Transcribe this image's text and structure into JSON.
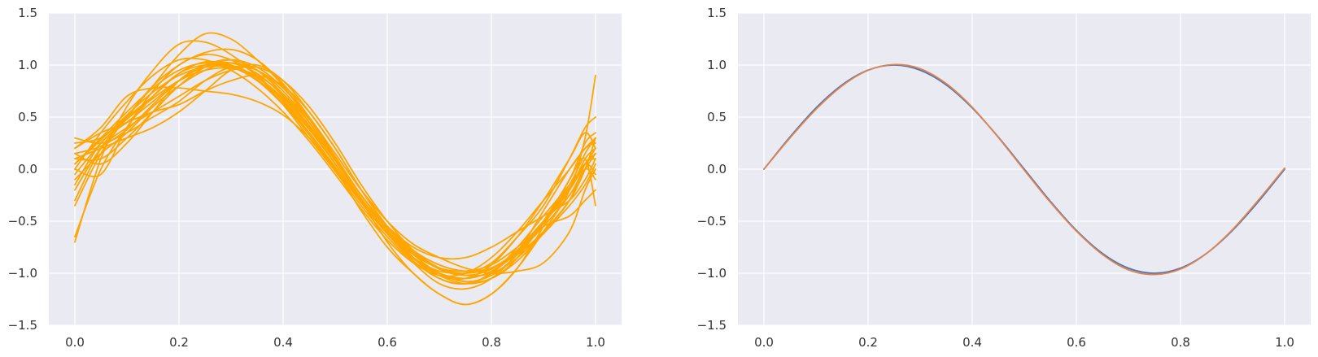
{
  "chart_data": [
    {
      "type": "line",
      "title": "",
      "xlabel": "",
      "ylabel": "",
      "xlim": [
        -0.05,
        1.05
      ],
      "ylim": [
        -1.5,
        1.5
      ],
      "xticks": [
        "0.0",
        "0.2",
        "0.4",
        "0.6",
        "0.8",
        "1.0"
      ],
      "yticks": [
        "−1.5",
        "−1.0",
        "−0.5",
        "0.0",
        "0.5",
        "1.0",
        "1.5"
      ],
      "grid": true,
      "line_color": "#ffa500",
      "n_samples": 20,
      "x": [
        0.0,
        0.05,
        0.1,
        0.15,
        0.2,
        0.25,
        0.3,
        0.35,
        0.4,
        0.45,
        0.5,
        0.55,
        0.6,
        0.65,
        0.7,
        0.75,
        0.8,
        0.85,
        0.9,
        0.95,
        0.98,
        1.0
      ],
      "series": [
        {
          "values": [
            0.05,
            0.3,
            0.55,
            0.78,
            0.95,
            1.02,
            0.99,
            0.86,
            0.63,
            0.33,
            0.0,
            -0.32,
            -0.62,
            -0.86,
            -1.0,
            -1.05,
            -0.98,
            -0.8,
            -0.55,
            -0.25,
            0.0,
            0.15
          ]
        },
        {
          "values": [
            -0.7,
            0.1,
            0.6,
            0.95,
            1.2,
            1.22,
            1.1,
            0.9,
            0.62,
            0.3,
            -0.02,
            -0.35,
            -0.65,
            -0.9,
            -1.1,
            -1.15,
            -1.05,
            -0.8,
            -0.4,
            0.0,
            0.2,
            0.3
          ]
        },
        {
          "values": [
            0.3,
            0.25,
            0.35,
            0.5,
            0.65,
            0.85,
            0.98,
            0.95,
            0.75,
            0.45,
            0.1,
            -0.25,
            -0.55,
            -0.8,
            -0.95,
            -1.0,
            -0.9,
            -0.65,
            -0.35,
            0.1,
            0.4,
            0.5
          ]
        },
        {
          "values": [
            0.0,
            -0.05,
            0.4,
            0.75,
            1.0,
            1.1,
            1.05,
            0.9,
            0.65,
            0.35,
            0.0,
            -0.4,
            -0.75,
            -1.0,
            -1.2,
            -1.3,
            -1.2,
            -0.95,
            -0.6,
            -0.2,
            0.3,
            0.9
          ]
        },
        {
          "values": [
            -0.3,
            0.2,
            0.5,
            0.8,
            1.1,
            1.3,
            1.25,
            1.05,
            0.8,
            0.45,
            0.1,
            -0.3,
            -0.7,
            -1.0,
            -1.2,
            -1.3,
            -1.2,
            -0.95,
            -0.55,
            -0.1,
            0.1,
            -0.35
          ]
        },
        {
          "values": [
            0.2,
            0.4,
            0.7,
            0.78,
            0.78,
            0.75,
            0.72,
            0.65,
            0.52,
            0.3,
            0.0,
            -0.3,
            -0.55,
            -0.75,
            -0.85,
            -0.85,
            -0.75,
            -0.6,
            -0.45,
            -0.3,
            -0.1,
            0.1
          ]
        },
        {
          "values": [
            0.1,
            0.2,
            0.3,
            0.4,
            0.55,
            0.75,
            0.95,
            1.0,
            0.85,
            0.55,
            0.2,
            -0.2,
            -0.55,
            -0.85,
            -1.05,
            -1.1,
            -1.0,
            -0.75,
            -0.45,
            -0.15,
            0.05,
            0.2
          ]
        },
        {
          "values": [
            -0.15,
            0.25,
            0.45,
            0.65,
            0.85,
            0.98,
            0.98,
            0.88,
            0.68,
            0.4,
            0.05,
            -0.3,
            -0.6,
            -0.85,
            -1.02,
            -1.05,
            -0.92,
            -0.65,
            -0.3,
            0.1,
            0.35,
            0.2
          ]
        },
        {
          "values": [
            0.25,
            0.3,
            0.5,
            0.7,
            0.92,
            1.03,
            1.0,
            0.88,
            0.66,
            0.38,
            0.05,
            -0.3,
            -0.62,
            -0.88,
            -1.05,
            -1.1,
            -1.0,
            -0.78,
            -0.5,
            -0.25,
            0.0,
            -0.1
          ]
        },
        {
          "values": [
            -0.1,
            0.15,
            0.35,
            0.6,
            0.8,
            0.95,
            1.02,
            0.95,
            0.78,
            0.5,
            0.15,
            -0.2,
            -0.5,
            -0.72,
            -0.85,
            -0.95,
            -1.0,
            -0.98,
            -0.9,
            -0.6,
            -0.2,
            0.0
          ]
        },
        {
          "values": [
            0.15,
            0.05,
            0.25,
            0.55,
            0.85,
            1.0,
            1.02,
            0.92,
            0.7,
            0.4,
            0.05,
            -0.3,
            -0.6,
            -0.85,
            -1.0,
            -1.08,
            -1.05,
            -0.85,
            -0.5,
            -0.1,
            0.25,
            0.35
          ]
        },
        {
          "values": [
            0.0,
            0.35,
            0.65,
            0.9,
            1.05,
            1.05,
            0.95,
            0.78,
            0.55,
            0.27,
            -0.05,
            -0.38,
            -0.68,
            -0.9,
            -1.02,
            -1.0,
            -0.85,
            -0.6,
            -0.3,
            0.0,
            0.2,
            0.25
          ]
        },
        {
          "values": [
            -0.35,
            0.15,
            0.5,
            0.8,
            1.0,
            1.12,
            1.15,
            1.05,
            0.82,
            0.5,
            0.12,
            -0.25,
            -0.55,
            -0.78,
            -0.92,
            -0.98,
            -0.95,
            -0.82,
            -0.6,
            -0.3,
            0.05,
            0.1
          ]
        },
        {
          "values": [
            0.2,
            0.35,
            0.45,
            0.55,
            0.62,
            0.75,
            0.85,
            0.9,
            0.8,
            0.55,
            0.2,
            -0.2,
            -0.55,
            -0.82,
            -1.0,
            -1.08,
            -1.02,
            -0.82,
            -0.52,
            -0.2,
            0.05,
            0.15
          ]
        },
        {
          "values": [
            0.05,
            0.28,
            0.52,
            0.74,
            0.9,
            0.98,
            0.98,
            0.88,
            0.68,
            0.4,
            0.05,
            -0.3,
            -0.6,
            -0.82,
            -0.95,
            -0.98,
            -0.92,
            -0.75,
            -0.55,
            -0.45,
            -0.3,
            -0.2
          ]
        },
        {
          "values": [
            -0.2,
            0.2,
            0.4,
            0.55,
            0.7,
            0.85,
            0.95,
            0.98,
            0.85,
            0.6,
            0.25,
            -0.15,
            -0.5,
            -0.78,
            -0.95,
            -1.02,
            -1.0,
            -0.85,
            -0.6,
            -0.3,
            0.0,
            0.3
          ]
        },
        {
          "values": [
            0.1,
            0.1,
            0.3,
            0.55,
            0.8,
            0.98,
            1.05,
            0.98,
            0.78,
            0.48,
            0.12,
            -0.25,
            -0.58,
            -0.85,
            -1.02,
            -1.1,
            -1.05,
            -0.88,
            -0.62,
            -0.35,
            -0.15,
            0.05
          ]
        },
        {
          "values": [
            -0.65,
            0.0,
            0.4,
            0.7,
            0.92,
            1.0,
            0.98,
            0.85,
            0.62,
            0.35,
            0.02,
            -0.32,
            -0.62,
            -0.85,
            -0.98,
            -1.0,
            -0.95,
            -0.78,
            -0.5,
            -0.15,
            0.15,
            0.3
          ]
        },
        {
          "values": [
            0.15,
            0.22,
            0.38,
            0.62,
            0.85,
            1.0,
            1.05,
            0.95,
            0.72,
            0.42,
            0.08,
            -0.28,
            -0.6,
            -0.85,
            -1.0,
            -1.05,
            -0.98,
            -0.8,
            -0.52,
            -0.2,
            0.1,
            0.2
          ]
        },
        {
          "values": [
            -0.05,
            0.25,
            0.48,
            0.68,
            0.85,
            0.95,
            0.97,
            0.9,
            0.72,
            0.45,
            0.1,
            -0.25,
            -0.56,
            -0.8,
            -0.96,
            -1.02,
            -0.96,
            -0.78,
            -0.5,
            -0.18,
            0.05,
            -0.05
          ]
        }
      ]
    },
    {
      "type": "line",
      "title": "",
      "xlabel": "",
      "ylabel": "",
      "xlim": [
        -0.05,
        1.05
      ],
      "ylim": [
        -1.5,
        1.5
      ],
      "xticks": [
        "0.0",
        "0.2",
        "0.4",
        "0.6",
        "0.8",
        "1.0"
      ],
      "yticks": [
        "−1.5",
        "−1.0",
        "−0.5",
        "0.0",
        "0.5",
        "1.0",
        "1.5"
      ],
      "grid": true,
      "x": [
        0.0,
        0.05,
        0.1,
        0.15,
        0.2,
        0.25,
        0.3,
        0.35,
        0.4,
        0.45,
        0.5,
        0.55,
        0.6,
        0.65,
        0.7,
        0.75,
        0.8,
        0.85,
        0.9,
        0.95,
        1.0
      ],
      "series": [
        {
          "color": "#4c72b0",
          "values": [
            0.0,
            0.309,
            0.588,
            0.809,
            0.951,
            1.0,
            0.951,
            0.809,
            0.588,
            0.309,
            0.0,
            -0.309,
            -0.588,
            -0.809,
            -0.951,
            -1.0,
            -0.951,
            -0.809,
            -0.588,
            -0.309,
            0.0
          ]
        },
        {
          "color": "#dd8452",
          "values": [
            0.0,
            0.3,
            0.575,
            0.8,
            0.95,
            1.005,
            0.965,
            0.822,
            0.595,
            0.305,
            -0.01,
            -0.318,
            -0.595,
            -0.82,
            -0.968,
            -1.012,
            -0.96,
            -0.81,
            -0.58,
            -0.295,
            0.01
          ]
        }
      ]
    }
  ],
  "style": {
    "axes_background": "#eaeaf2",
    "grid_color": "#ffffff",
    "tick_label_color": "#333333"
  }
}
